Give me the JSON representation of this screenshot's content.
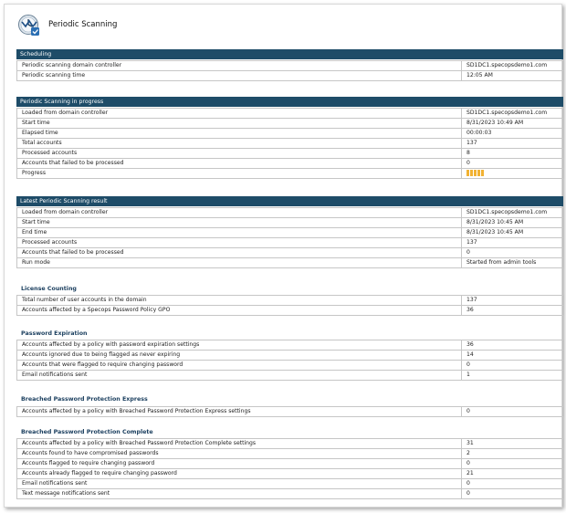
{
  "header": {
    "title": "Periodic Scanning"
  },
  "colors": {
    "section_bar": "#1e4c68",
    "subheading": "#1a3e5e",
    "progress": "#f2b233"
  },
  "scheduling": {
    "title": "Scheduling",
    "rows": [
      {
        "label": "Periodic scanning domain controller",
        "value": "SD1DC1.specopsdemo1.com"
      },
      {
        "label": "Periodic scanning time",
        "value": "12:05 AM"
      }
    ]
  },
  "in_progress": {
    "title": "Periodic Scanning in progress",
    "rows": [
      {
        "label": "Loaded from domain controller",
        "value": "SD1DC1.specopsdemo1.com"
      },
      {
        "label": "Start time",
        "value": "8/31/2023 10:49 AM"
      },
      {
        "label": "Elapsed time",
        "value": "00:00:03"
      },
      {
        "label": "Total accounts",
        "value": "137"
      },
      {
        "label": "Processed accounts",
        "value": "8"
      },
      {
        "label": "Accounts that failed to be processed",
        "value": "0"
      }
    ],
    "progress_label": "Progress",
    "progress_segments": 5
  },
  "latest": {
    "title": "Latest Periodic Scanning result",
    "rows": [
      {
        "label": "Loaded from domain controller",
        "value": "SD1DC1.specopsdemo1.com"
      },
      {
        "label": "Start time",
        "value": "8/31/2023 10:45 AM"
      },
      {
        "label": "End time",
        "value": "8/31/2023 10:45 AM"
      },
      {
        "label": "Processed accounts",
        "value": "137"
      },
      {
        "label": "Accounts that failed to be processed",
        "value": "0"
      },
      {
        "label": "Run mode",
        "value": "Started from admin tools"
      }
    ]
  },
  "license": {
    "title": "License Counting",
    "rows": [
      {
        "label": "Total number of user accounts in the domain",
        "value": "137"
      },
      {
        "label": "Accounts affected by a Specops Password Policy GPO",
        "value": "36"
      }
    ]
  },
  "expiration": {
    "title": "Password Expiration",
    "rows": [
      {
        "label": "Accounts affected by a policy with password expiration settings",
        "value": "36"
      },
      {
        "label": "Accounts ignored due to being flagged as never expiring",
        "value": "14"
      },
      {
        "label": "Accounts that were flagged to require changing password",
        "value": "0"
      },
      {
        "label": "Email notifications sent",
        "value": "1"
      }
    ]
  },
  "bpp_express": {
    "title": "Breached Password Protection Express",
    "rows": [
      {
        "label": "Accounts affected by a policy with Breached Password Protection Express settings",
        "value": "0"
      }
    ]
  },
  "bpp_complete": {
    "title": "Breached Password Protection Complete",
    "rows": [
      {
        "label": "Accounts affected by a policy with Breached Password Protection Complete settings",
        "value": "31"
      },
      {
        "label": "Accounts found to have compromised passwords",
        "value": "2"
      },
      {
        "label": "Accounts flagged to require changing password",
        "value": "0"
      },
      {
        "label": "Accounts already flagged to require changing password",
        "value": "21"
      },
      {
        "label": "Email notifications sent",
        "value": "0"
      },
      {
        "label": "Text message notifications sent",
        "value": "0"
      }
    ]
  }
}
